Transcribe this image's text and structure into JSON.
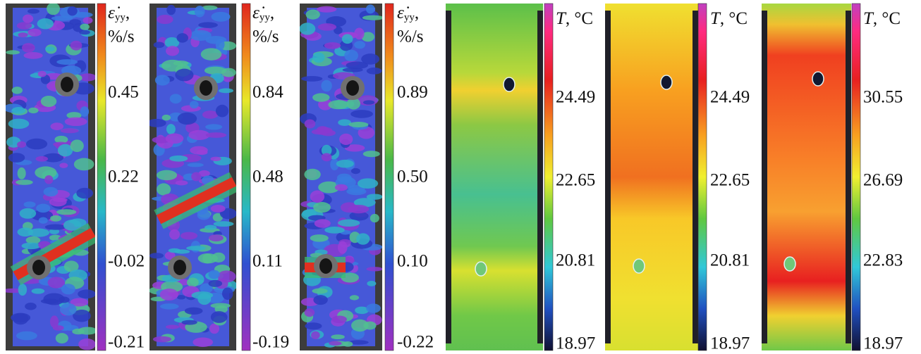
{
  "panels": [
    {
      "colorbar_label": {
        "symbol": "ε̇",
        "subscript": "yy",
        "suffix": ",",
        "unit": "%/s"
      },
      "ticks": [
        "0.45",
        "0.22",
        "-0.02",
        "-0.21"
      ]
    },
    {
      "colorbar_label": {
        "symbol": "ε̇",
        "subscript": "yy",
        "suffix": ",",
        "unit": "%/s"
      },
      "ticks": [
        "0.84",
        "0.48",
        "0.11",
        "-0.19"
      ]
    },
    {
      "colorbar_label": {
        "symbol": "ε̇",
        "subscript": "yy",
        "suffix": ",",
        "unit": "%/s"
      },
      "ticks": [
        "0.89",
        "0.50",
        "0.10",
        "-0.22"
      ]
    },
    {
      "colorbar_label": {
        "symbol": "T",
        "suffix": ", °C"
      },
      "ticks": [
        "24.49",
        "22.65",
        "20.81",
        "18.97"
      ]
    },
    {
      "colorbar_label": {
        "symbol": "T",
        "suffix": ", °C"
      },
      "ticks": [
        "24.49",
        "22.65",
        "20.81",
        "18.97"
      ]
    },
    {
      "colorbar_label": {
        "symbol": "T",
        "suffix": ", °C"
      },
      "ticks": [
        "30.55",
        "26.69",
        "22.83",
        "18.97"
      ]
    }
  ]
}
